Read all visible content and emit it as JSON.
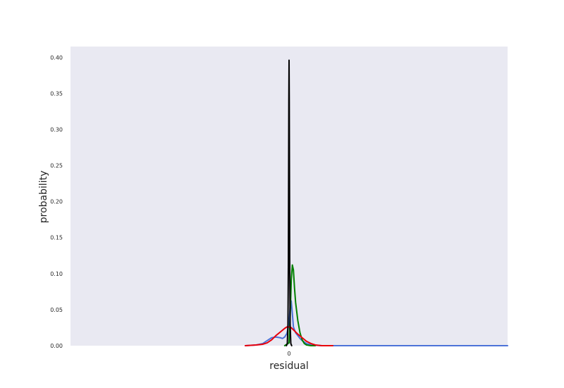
{
  "chart_data": {
    "type": "line",
    "title": "",
    "xlabel": "residual",
    "ylabel": "probability",
    "xlim": [
      -1.0,
      1.0
    ],
    "ylim": [
      0,
      0.415
    ],
    "grid": false,
    "background": "#e9e9f2",
    "x_ticks": [
      {
        "value": 0,
        "label": "0"
      }
    ],
    "y_ticks": [
      {
        "value": 0.0,
        "label": "0.00"
      },
      {
        "value": 0.05,
        "label": "0.05"
      },
      {
        "value": 0.1,
        "label": "0.10"
      },
      {
        "value": 0.15,
        "label": "0.15"
      },
      {
        "value": 0.2,
        "label": "0.20"
      },
      {
        "value": 0.25,
        "label": "0.25"
      },
      {
        "value": 0.3,
        "label": "0.30"
      },
      {
        "value": 0.35,
        "label": "0.35"
      },
      {
        "value": 0.4,
        "label": "0.40"
      }
    ],
    "series": [
      {
        "color": "#4c72d8",
        "x": [
          -0.2,
          -0.15,
          -0.12,
          -0.1,
          -0.08,
          -0.06,
          -0.04,
          -0.03,
          -0.02,
          -0.01,
          0.0,
          0.005,
          0.01,
          0.015,
          0.02,
          0.03,
          0.04,
          0.05,
          0.06,
          0.08,
          0.1,
          0.15,
          0.2,
          0.3,
          0.5,
          0.7,
          1.0
        ],
        "y": [
          0.0,
          0.001,
          0.003,
          0.007,
          0.011,
          0.012,
          0.011,
          0.01,
          0.012,
          0.017,
          0.03,
          0.055,
          0.062,
          0.045,
          0.026,
          0.018,
          0.014,
          0.01,
          0.007,
          0.003,
          0.001,
          0.0,
          0.0,
          0.0,
          0.0,
          0.0,
          0.0
        ]
      },
      {
        "color": "#008000",
        "x": [
          -0.02,
          0.0,
          0.005,
          0.01,
          0.015,
          0.02,
          0.025,
          0.03,
          0.04,
          0.05,
          0.06,
          0.07,
          0.08,
          0.1,
          0.12
        ],
        "y": [
          0.0,
          0.004,
          0.04,
          0.09,
          0.112,
          0.105,
          0.08,
          0.06,
          0.035,
          0.018,
          0.008,
          0.003,
          0.001,
          0.0,
          0.0
        ]
      },
      {
        "color": "#e8000b",
        "x": [
          -0.2,
          -0.15,
          -0.12,
          -0.1,
          -0.08,
          -0.06,
          -0.04,
          -0.02,
          -0.01,
          0.0,
          0.01,
          0.02,
          0.04,
          0.06,
          0.08,
          0.1,
          0.12,
          0.15,
          0.2
        ],
        "y": [
          0.0,
          0.001,
          0.002,
          0.004,
          0.008,
          0.014,
          0.019,
          0.024,
          0.026,
          0.026,
          0.025,
          0.022,
          0.016,
          0.011,
          0.006,
          0.003,
          0.001,
          0.0,
          0.0
        ]
      },
      {
        "color": "#000000",
        "x": [
          -0.012,
          -0.008,
          -0.005,
          -0.003,
          -0.002,
          -0.001,
          0.0,
          0.001,
          0.002,
          0.003,
          0.005,
          0.008,
          0.012
        ],
        "y": [
          0.0,
          0.003,
          0.03,
          0.12,
          0.23,
          0.34,
          0.396,
          0.34,
          0.23,
          0.12,
          0.03,
          0.003,
          0.0
        ]
      }
    ]
  }
}
